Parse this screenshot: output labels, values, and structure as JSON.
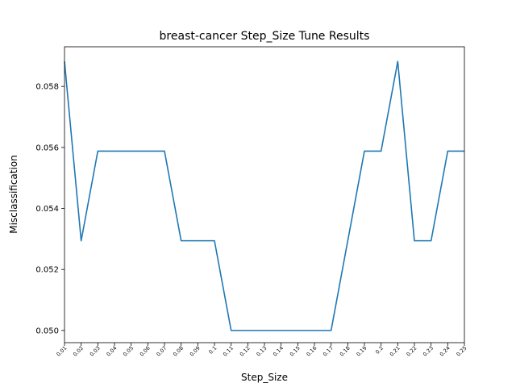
{
  "chart_data": {
    "type": "line",
    "title": "breast-cancer Step_Size Tune Results",
    "xlabel": "Step_Size",
    "ylabel": "Misclassification",
    "categories": [
      "0.01",
      "0.02",
      "0.03",
      "0.04",
      "0.05",
      "0.06",
      "0.07",
      "0.08",
      "0.09",
      "0.1",
      "0.11",
      "0.12",
      "0.13",
      "0.14",
      "0.15",
      "0.16",
      "0.17",
      "0.18",
      "0.19",
      "0.2",
      "0.21",
      "0.22",
      "0.23",
      "0.24",
      "0.25"
    ],
    "series": [
      {
        "values": [
          0.05882,
          0.05294,
          0.05588,
          0.05588,
          0.05588,
          0.05588,
          0.05588,
          0.05294,
          0.05294,
          0.05294,
          0.05,
          0.05,
          0.05,
          0.05,
          0.05,
          0.05,
          0.05,
          0.05294,
          0.05588,
          0.05588,
          0.05882,
          0.05294,
          0.05294,
          0.05588,
          0.05588
        ],
        "color": "#1f77b4"
      }
    ],
    "yticks": [
      "0.050",
      "0.052",
      "0.054",
      "0.056",
      "0.058"
    ],
    "ylim": [
      0.0496,
      0.0593
    ],
    "grid": false
  }
}
